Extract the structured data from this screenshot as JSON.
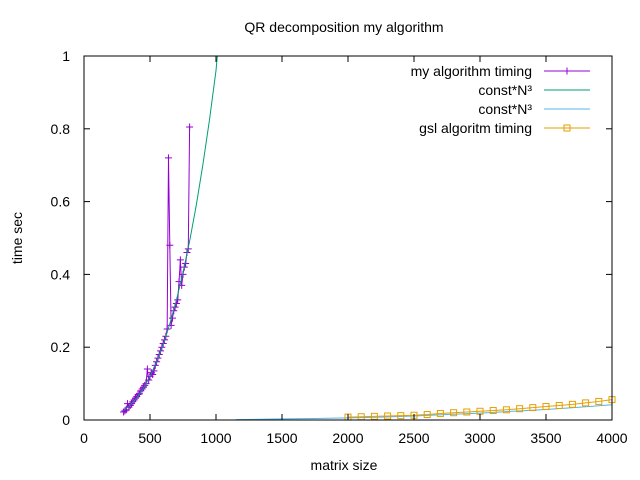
{
  "chart_data": {
    "type": "line",
    "title": "QR decomposition my algorithm",
    "xlabel": "matrix size",
    "ylabel": "time sec",
    "xlim": [
      0,
      4000
    ],
    "ylim": [
      0,
      1
    ],
    "xticks": [
      0,
      500,
      1000,
      1500,
      2000,
      2500,
      3000,
      3500,
      4000
    ],
    "yticks": [
      0,
      0.2,
      0.4,
      0.6,
      0.8,
      1
    ],
    "ytick_labels": [
      "0",
      "0.2",
      "0.4",
      "0.6",
      "0.8",
      "1"
    ],
    "grid": false,
    "legend_position": "top-right",
    "series": [
      {
        "name": "my algorithm timing",
        "color": "#9400d3",
        "marker": "plus",
        "x": [
          300,
          310,
          320,
          330,
          340,
          350,
          360,
          370,
          380,
          390,
          400,
          410,
          420,
          430,
          440,
          450,
          460,
          470,
          480,
          490,
          500,
          510,
          520,
          530,
          540,
          550,
          560,
          570,
          580,
          590,
          600,
          610,
          620,
          630,
          640,
          650,
          660,
          670,
          680,
          690,
          700,
          710,
          720,
          730,
          740,
          750,
          760,
          770,
          780,
          790,
          800
        ],
        "y": [
          0.022,
          0.025,
          0.028,
          0.045,
          0.035,
          0.04,
          0.045,
          0.05,
          0.055,
          0.06,
          0.065,
          0.07,
          0.072,
          0.08,
          0.085,
          0.09,
          0.095,
          0.1,
          0.14,
          0.11,
          0.12,
          0.13,
          0.125,
          0.135,
          0.15,
          0.16,
          0.17,
          0.18,
          0.19,
          0.2,
          0.21,
          0.22,
          0.23,
          0.25,
          0.72,
          0.48,
          0.26,
          0.28,
          0.3,
          0.31,
          0.32,
          0.33,
          0.38,
          0.44,
          0.37,
          0.4,
          0.42,
          0.43,
          0.46,
          0.47,
          0.805
        ]
      },
      {
        "name": "const*N³",
        "color": "#009e73",
        "marker": "none",
        "x": [
          300,
          350,
          400,
          450,
          500,
          550,
          600,
          650,
          700,
          750,
          800,
          850,
          900,
          950,
          1000,
          1010
        ],
        "y": [
          0.026,
          0.041,
          0.061,
          0.087,
          0.12,
          0.16,
          0.207,
          0.264,
          0.329,
          0.405,
          0.491,
          0.589,
          0.7,
          0.823,
          0.96,
          1.0
        ]
      },
      {
        "name": "const*N³",
        "color": "#56b4e9",
        "marker": "none",
        "x": [
          1150,
          1500,
          1750,
          2000,
          2250,
          2500,
          2750,
          3000,
          3250,
          3500,
          3750,
          4000
        ],
        "y": [
          0.001,
          0.003,
          0.004,
          0.006,
          0.008,
          0.011,
          0.015,
          0.019,
          0.024,
          0.029,
          0.035,
          0.042
        ]
      },
      {
        "name": "gsl algoritm timing",
        "color": "#e69f00",
        "marker": "square",
        "x": [
          2000,
          2100,
          2200,
          2300,
          2400,
          2500,
          2600,
          2700,
          2800,
          2900,
          3000,
          3100,
          3200,
          3300,
          3400,
          3500,
          3600,
          3700,
          3800,
          3900,
          4000
        ],
        "y": [
          0.008,
          0.009,
          0.01,
          0.011,
          0.012,
          0.013,
          0.015,
          0.018,
          0.02,
          0.022,
          0.024,
          0.026,
          0.028,
          0.031,
          0.034,
          0.037,
          0.04,
          0.043,
          0.047,
          0.051,
          0.056
        ]
      }
    ]
  }
}
